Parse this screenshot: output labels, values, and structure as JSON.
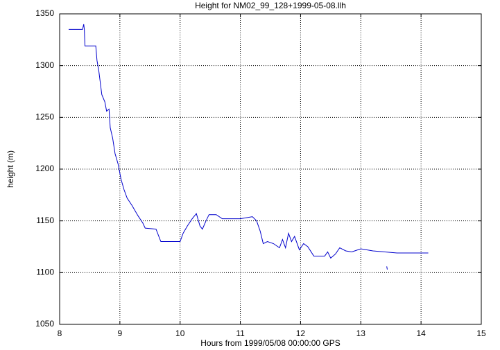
{
  "chart_data": {
    "type": "line",
    "title": "Height for NM02_99_128+1999-05-08.llh",
    "xlabel": "Hours from 1999/05/08 00:00:00 GPS",
    "ylabel": "height (m)",
    "color": "#0000cc",
    "grid": true,
    "xlim": [
      8,
      15
    ],
    "xticks": [
      8,
      9,
      10,
      11,
      12,
      13,
      14,
      15
    ],
    "ylim": [
      1050,
      1350
    ],
    "yticks": [
      1050,
      1100,
      1150,
      1200,
      1250,
      1300,
      1350
    ],
    "x": [
      8.15,
      8.38,
      8.4,
      8.41,
      8.42,
      8.6,
      8.62,
      8.65,
      8.7,
      8.75,
      8.78,
      8.82,
      8.84,
      8.88,
      8.92,
      8.97,
      9.02,
      9.07,
      9.12,
      9.2,
      9.3,
      9.38,
      9.42,
      9.6,
      9.68,
      10.0,
      10.05,
      10.12,
      10.2,
      10.27,
      10.33,
      10.37,
      10.43,
      10.48,
      10.6,
      10.7,
      11.0,
      11.2,
      11.27,
      11.33,
      11.38,
      11.45,
      11.55,
      11.65,
      11.7,
      11.75,
      11.8,
      11.85,
      11.9,
      11.98,
      12.05,
      12.12,
      12.22,
      12.4,
      12.45,
      12.5,
      12.58,
      12.65,
      12.75,
      12.85,
      13.0,
      13.2,
      13.4,
      13.6,
      14.0,
      14.12,
      null,
      13.43,
      13.44
    ],
    "values": [
      1335,
      1335,
      1340,
      1335,
      1319,
      1319,
      1305,
      1295,
      1272,
      1265,
      1256,
      1258,
      1240,
      1230,
      1215,
      1205,
      1190,
      1180,
      1172,
      1165,
      1155,
      1148,
      1143,
      1142,
      1130,
      1130,
      1138,
      1145,
      1152,
      1157,
      1145,
      1142,
      1150,
      1156,
      1156,
      1152,
      1152,
      1154,
      1150,
      1140,
      1128,
      1130,
      1128,
      1124,
      1132,
      1124,
      1138,
      1130,
      1135,
      1122,
      1128,
      1125,
      1116,
      1116,
      1120,
      1114,
      1118,
      1124,
      1121,
      1120,
      1123,
      1121,
      1120,
      1119,
      1119,
      1119,
      null,
      1106,
      1103
    ]
  }
}
